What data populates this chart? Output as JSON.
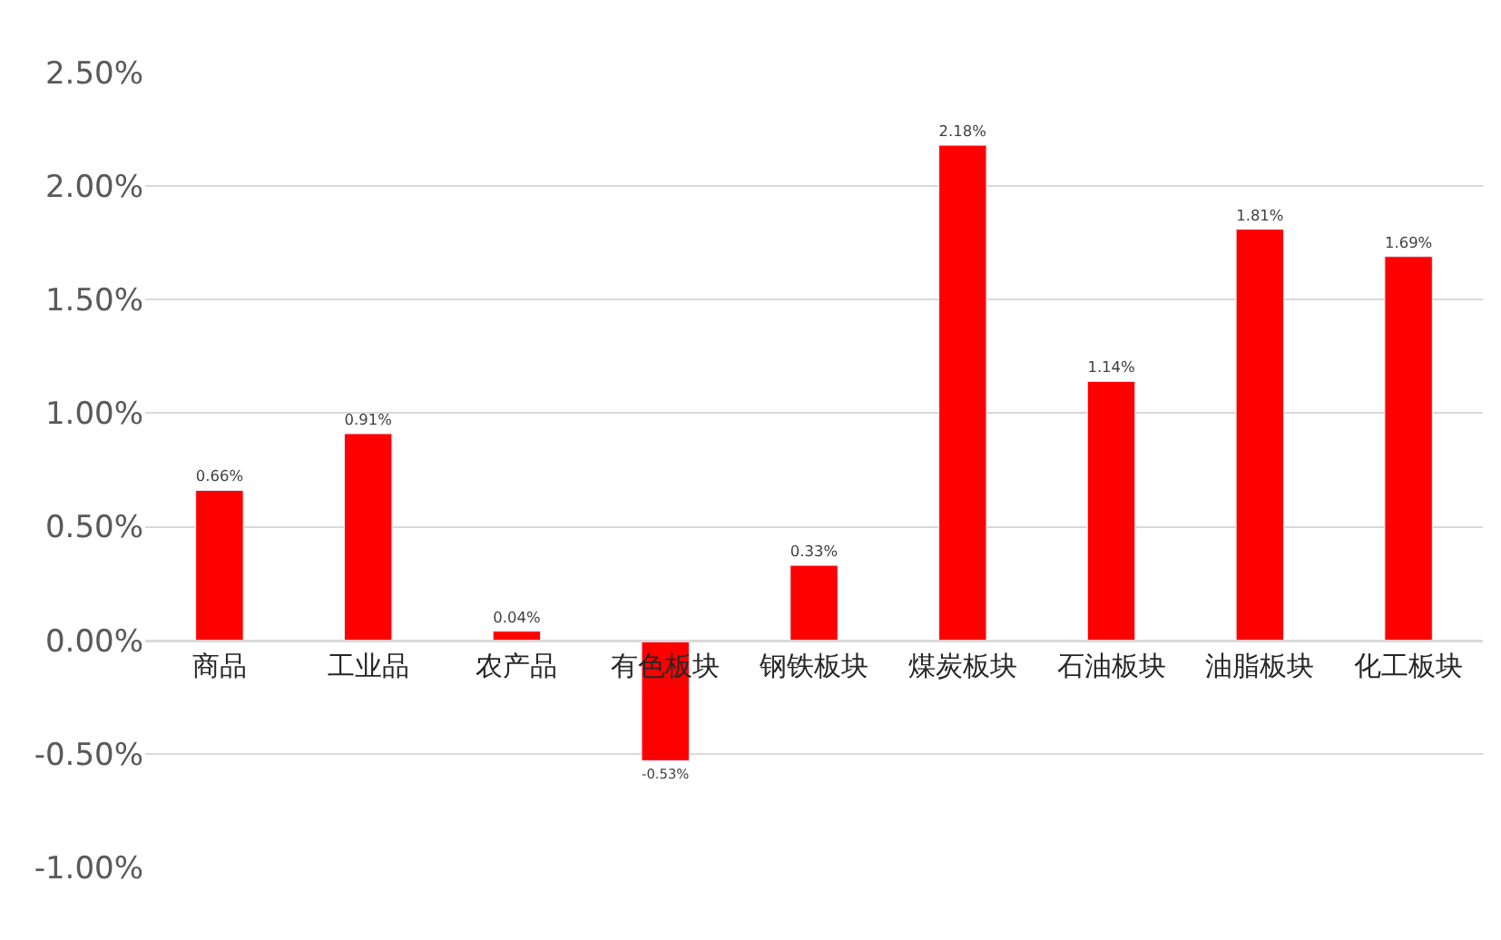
{
  "chart_data": {
    "type": "bar",
    "categories": [
      "商品",
      "工业品",
      "农产品",
      "有色板块",
      "钢铁板块",
      "煤炭板块",
      "石油板块",
      "油脂板块",
      "化工板块"
    ],
    "values": [
      0.66,
      0.91,
      0.04,
      -0.53,
      0.33,
      2.18,
      1.14,
      1.81,
      1.69
    ],
    "value_labels": [
      "0.66%",
      "0.91%",
      "0.04%",
      "-0.53%",
      "0.33%",
      "2.18%",
      "1.14%",
      "1.81%",
      "1.69%"
    ],
    "color": "#ff0000",
    "ylim": [
      -1.0,
      2.5
    ],
    "yticks": [
      {
        "value": -1.0,
        "label": "-1.00%"
      },
      {
        "value": -0.5,
        "label": "-0.50%"
      },
      {
        "value": 0,
        "label": "0.00%"
      },
      {
        "value": 0.5,
        "label": "0.50%"
      },
      {
        "value": 1.0,
        "label": "1.00%"
      },
      {
        "value": 1.5,
        "label": "1.50%"
      },
      {
        "value": 2.0,
        "label": "2.00%"
      },
      {
        "value": 2.5,
        "label": "2.50%"
      }
    ],
    "grid": "y"
  }
}
